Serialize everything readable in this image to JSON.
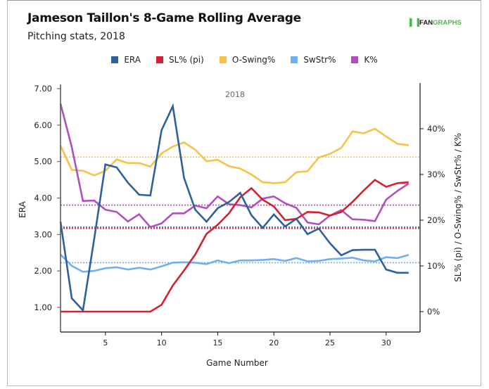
{
  "title": "Jameson Taillon's 8-Game Rolling Average",
  "subtitle": "Pitching stats, 2018",
  "logo": {
    "mark": "░‖",
    "fan": "FAN",
    "graphs": "GRAPHS"
  },
  "chart_data": {
    "type": "line",
    "title": "Jameson Taillon's 8-Game Rolling Average",
    "subtitle": "Pitching stats, 2018",
    "annotation": "2018",
    "xlabel": "Game Number",
    "ylabel_left": "ERA",
    "ylabel_right": "SL% (pi) / O-Swing% / SwStr% / K%",
    "xlim": [
      1,
      32.5
    ],
    "ylim_left": [
      0.35,
      7.1
    ],
    "ylim_right": [
      -2.0,
      48.0
    ],
    "x_ticks": [
      5,
      10,
      15,
      20,
      25,
      30
    ],
    "x_tick_labels": [
      "5",
      "10",
      "15",
      "20",
      "25",
      "30"
    ],
    "y_left_ticks": [
      1,
      2,
      3,
      4,
      5,
      6,
      7
    ],
    "y_left_tick_labels": [
      "1.00",
      "2.00",
      "3.00",
      "4.00",
      "5.00",
      "6.00",
      "7.00"
    ],
    "y_right_ticks": [
      0,
      10,
      20,
      30,
      40
    ],
    "y_right_tick_labels": [
      "0%",
      "10%",
      "20%",
      "30%",
      "40%"
    ],
    "grid": false,
    "legend_position": "top-center",
    "x": [
      1,
      2,
      3,
      4,
      5,
      6,
      7,
      8,
      9,
      10,
      11,
      12,
      13,
      14,
      15,
      16,
      17,
      18,
      19,
      20,
      21,
      22,
      23,
      24,
      25,
      26,
      27,
      28,
      29,
      30,
      31,
      32
    ],
    "series": [
      {
        "name": "ERA",
        "axis": "left",
        "color": "#2e619b",
        "average": 3.2,
        "values": [
          3.35,
          1.25,
          0.92,
          2.88,
          4.92,
          4.84,
          4.42,
          4.09,
          4.07,
          5.86,
          6.52,
          4.55,
          3.68,
          3.35,
          3.72,
          3.89,
          4.14,
          3.53,
          3.18,
          3.55,
          3.22,
          3.43,
          3.01,
          3.16,
          2.76,
          2.43,
          2.57,
          2.58,
          2.58,
          2.04,
          1.95,
          1.95
        ]
      },
      {
        "name": "SL% (pi)",
        "axis": "right",
        "color": "#d42030",
        "average": 18.2,
        "values": [
          0,
          0,
          0,
          0,
          0,
          0,
          0,
          0,
          0,
          1.5,
          5.7,
          9.0,
          12.5,
          17.0,
          19.0,
          21.5,
          25.0,
          27.0,
          24.5,
          23.0,
          20.0,
          20.3,
          21.8,
          21.7,
          21.0,
          21.8,
          24.0,
          26.5,
          28.8,
          27.3,
          28.1,
          28.3
        ]
      },
      {
        "name": "O-Swing%",
        "axis": "right",
        "color": "#f8c14a",
        "average": 33.8,
        "values": [
          36.3,
          31.0,
          30.8,
          29.8,
          30.8,
          33.3,
          32.5,
          32.5,
          31.7,
          34.6,
          36.1,
          37.0,
          35.4,
          32.9,
          33.2,
          31.8,
          31.3,
          30.0,
          28.3,
          28.1,
          28.3,
          30.5,
          30.7,
          33.7,
          34.5,
          35.8,
          39.4,
          39.0,
          40.0,
          38.3,
          36.7,
          36.4
        ]
      },
      {
        "name": "SwStr%",
        "axis": "right",
        "color": "#6fb0f0",
        "average": 10.7,
        "values": [
          12.5,
          10.0,
          8.7,
          8.9,
          9.5,
          9.7,
          9.2,
          9.6,
          9.2,
          9.9,
          10.7,
          10.8,
          10.7,
          10.4,
          11.2,
          10.6,
          11.2,
          11.2,
          11.3,
          11.5,
          11.1,
          11.7,
          11.0,
          11.1,
          11.5,
          11.6,
          11.8,
          11.2,
          11.0,
          11.9,
          11.7,
          12.4
        ]
      },
      {
        "name": "K%",
        "axis": "right",
        "color": "#b14fbc",
        "average": 23.3,
        "values": [
          45.5,
          36.0,
          24.2,
          24.3,
          22.3,
          21.8,
          19.7,
          21.3,
          18.5,
          19.3,
          21.5,
          21.5,
          23.2,
          22.6,
          25.2,
          23.5,
          23.3,
          22.8,
          24.7,
          25.2,
          23.7,
          22.7,
          19.5,
          19.1,
          21.0,
          22.2,
          20.2,
          20.1,
          19.8,
          24.5,
          26.4,
          28.0
        ]
      }
    ]
  }
}
